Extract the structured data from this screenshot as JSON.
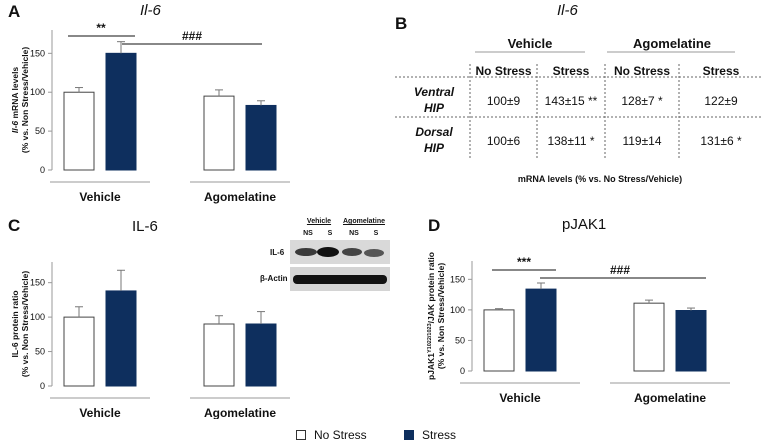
{
  "panels": {
    "A": {
      "letter": "A",
      "title": "Il-6",
      "ylabel_1": "Il-6 mRNA levels",
      "ylabel_2": "(% vs. Non Stress/Vehicle)"
    },
    "B": {
      "letter": "B",
      "title": "Il-6",
      "group_headers": [
        "Vehicle",
        "Agomelatine"
      ],
      "col_headers": [
        "No Stress",
        "Stress",
        "No Stress",
        "Stress"
      ],
      "rows": [
        {
          "label_1": "Ventral",
          "label_2": "HIP",
          "cells": [
            "100±9",
            "143±15 **",
            "128±7 *",
            "122±9"
          ]
        },
        {
          "label_1": "Dorsal",
          "label_2": "HIP",
          "cells": [
            "100±6",
            "138±11 *",
            "119±14",
            "131±6 *"
          ]
        }
      ],
      "footer": "mRNA levels (% vs. No Stress/Vehicle)"
    },
    "C": {
      "letter": "C",
      "title": "IL-6",
      "ylabel_1": "IL-6 protein ratio",
      "ylabel_2": "(% vs. Non Stress/Vehicle)",
      "blot": {
        "group_labels": [
          "Vehicle",
          "Agomelatine"
        ],
        "lane_labels": [
          "NS",
          "S",
          "NS",
          "S"
        ],
        "row_labels": [
          "IL-6",
          "β-Actin"
        ]
      }
    },
    "D": {
      "letter": "D",
      "title": "pJAK1",
      "ylabel_0": "pJAK1",
      "ylabel_sup1": "Y1022/1023",
      "ylabel_mid": "/JAK protein ratio",
      "ylabel_2": "(% vs. Non Stress/Vehicle)"
    }
  },
  "legend": {
    "no_stress": "No Stress",
    "stress": "Stress"
  },
  "colors": {
    "stress": "#0e2f5e",
    "no_stress": "#ffffff",
    "axis": "#999999"
  },
  "chart_data": [
    {
      "id": "A",
      "type": "bar",
      "title": "Il-6",
      "categories": [
        "Vehicle",
        "Agomelatine"
      ],
      "series": [
        {
          "name": "No Stress",
          "values": [
            100,
            95
          ],
          "errors": [
            6,
            8
          ]
        },
        {
          "name": "Stress",
          "values": [
            150,
            83
          ],
          "errors": [
            15,
            6
          ]
        }
      ],
      "ylabel": "Il-6 mRNA levels (% vs. Non Stress/Vehicle)",
      "ylim": [
        0,
        180
      ],
      "yticks": [
        0,
        50,
        100,
        150
      ],
      "annotations": [
        {
          "text": "**",
          "compare": "Vehicle"
        },
        {
          "text": "###",
          "compare": "Stress Vehicle vs Agomelatine"
        }
      ]
    },
    {
      "id": "C",
      "type": "bar",
      "title": "IL-6",
      "categories": [
        "Vehicle",
        "Agomelatine"
      ],
      "series": [
        {
          "name": "No Stress",
          "values": [
            100,
            90
          ],
          "errors": [
            15,
            12
          ]
        },
        {
          "name": "Stress",
          "values": [
            138,
            90
          ],
          "errors": [
            30,
            18
          ]
        }
      ],
      "ylabel": "IL-6 protein ratio (% vs. Non Stress/Vehicle)",
      "ylim": [
        0,
        180
      ],
      "yticks": [
        0,
        50,
        100,
        150
      ]
    },
    {
      "id": "D",
      "type": "bar",
      "title": "pJAK1",
      "categories": [
        "Vehicle",
        "Agomelatine"
      ],
      "series": [
        {
          "name": "No Stress",
          "values": [
            100,
            111
          ],
          "errors": [
            2,
            5
          ]
        },
        {
          "name": "Stress",
          "values": [
            134,
            99
          ],
          "errors": [
            10,
            4
          ]
        }
      ],
      "ylabel": "pJAK1Y1022/1023/JAK protein ratio (% vs. Non Stress/Vehicle)",
      "ylim": [
        0,
        180
      ],
      "yticks": [
        0,
        50,
        100,
        150
      ],
      "annotations": [
        {
          "text": "***",
          "compare": "Vehicle"
        },
        {
          "text": "###",
          "compare": "Stress Vehicle vs Agomelatine"
        }
      ]
    }
  ]
}
